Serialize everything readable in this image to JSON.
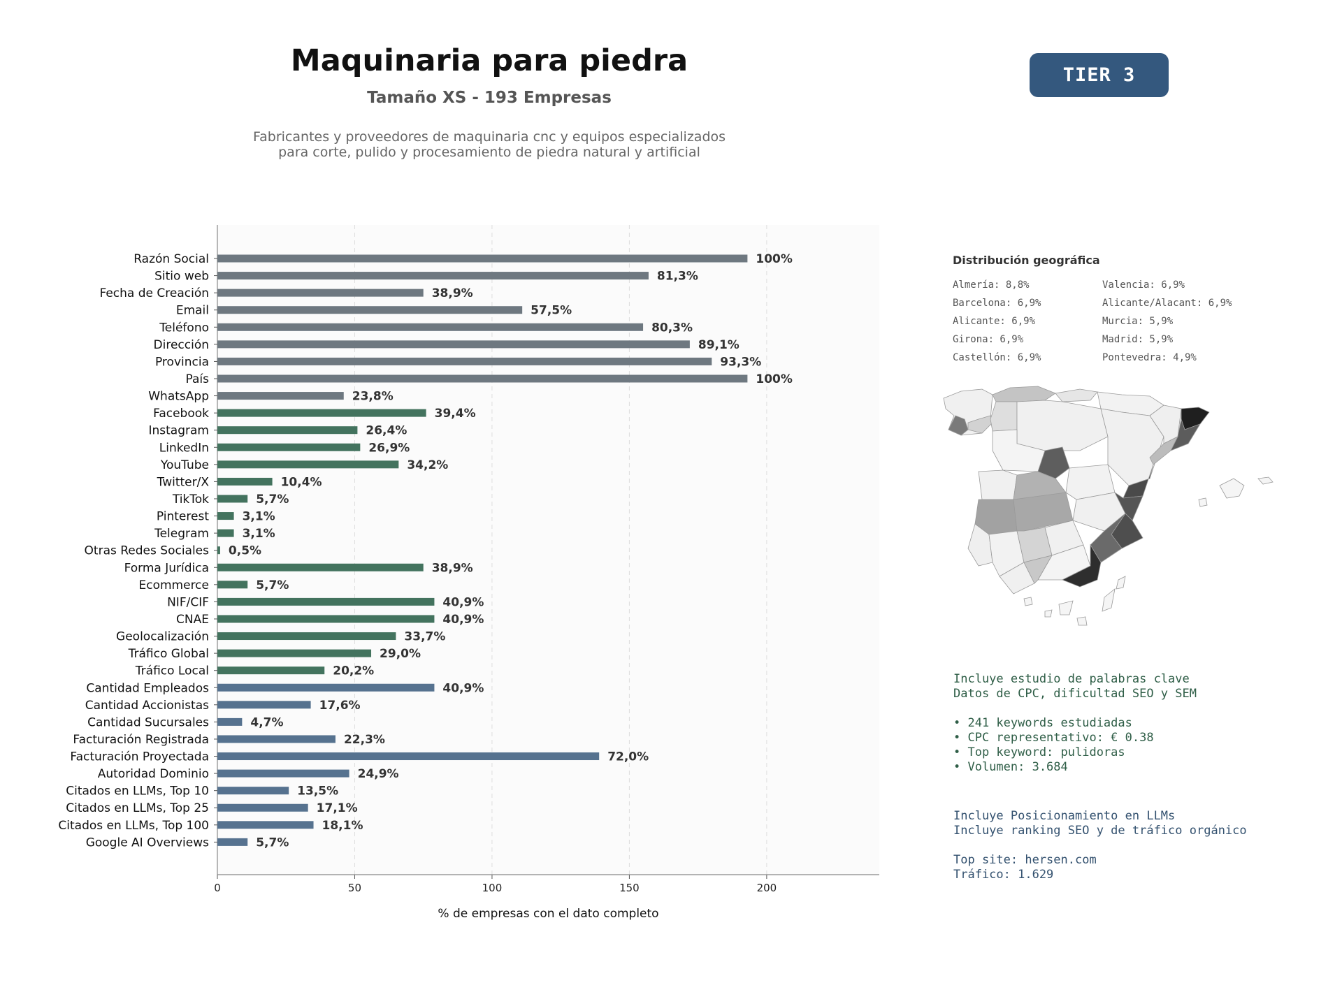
{
  "header": {
    "title": "Maquinaria para piedra",
    "subtitle": "Tamaño XS - 193 Empresas",
    "description_lines": [
      "Fabricantes y proveedores de maquinaria cnc y equipos especializados",
      "para corte, pulido y procesamiento de piedra natural y artificial"
    ],
    "tier_label": "TIER 3"
  },
  "chart_data": {
    "type": "bar",
    "orientation": "horizontal",
    "xlabel": "% de empresas con el dato completo",
    "xlim": [
      0,
      241
    ],
    "xticks": [
      0,
      50,
      100,
      150,
      200
    ],
    "grid": "vertical dashed",
    "categories": [
      "Razón Social",
      "Sitio web",
      "Fecha de Creación",
      "Email",
      "Teléfono",
      "Dirección",
      "Provincia",
      "País",
      "WhatsApp",
      "Facebook",
      "Instagram",
      "LinkedIn",
      "YouTube",
      "Twitter/X",
      "TikTok",
      "Pinterest",
      "Telegram",
      "Otras Redes Sociales",
      "Forma Jurídica",
      "Ecommerce",
      "NIF/CIF",
      "CNAE",
      "Geolocalización",
      "Tráfico Global",
      "Tráfico Local",
      "Cantidad Empleados",
      "Cantidad Accionistas",
      "Cantidad Sucursales",
      "Facturación Registrada",
      "Facturación Proyectada",
      "Autoridad Dominio",
      "Citados en LLMs, Top 10",
      "Citados en LLMs, Top 25",
      "Citados en LLMs, Top 100",
      "Google AI Overviews"
    ],
    "values": [
      193,
      157,
      75,
      111,
      155,
      172,
      180,
      193,
      46,
      76,
      51,
      52,
      66,
      20,
      11,
      6,
      6,
      1,
      75,
      11,
      79,
      79,
      65,
      56,
      39,
      79,
      34,
      9,
      43,
      139,
      48,
      26,
      33,
      35,
      11
    ],
    "labels": [
      "100%",
      "81,3%",
      "38,9%",
      "57,5%",
      "80,3%",
      "89,1%",
      "93,3%",
      "100%",
      "23,8%",
      "39,4%",
      "26,4%",
      "26,9%",
      "34,2%",
      "10,4%",
      "5,7%",
      "3,1%",
      "3,1%",
      "0,5%",
      "38,9%",
      "5,7%",
      "40,9%",
      "40,9%",
      "33,7%",
      "29,0%",
      "20,2%",
      "40,9%",
      "17,6%",
      "4,7%",
      "22,3%",
      "72,0%",
      "24,9%",
      "13,5%",
      "17,1%",
      "18,1%",
      "5,7%"
    ],
    "groups": [
      "gray",
      "green",
      "blue"
    ],
    "group_of_bar": [
      0,
      0,
      0,
      0,
      0,
      0,
      0,
      0,
      0,
      1,
      1,
      1,
      1,
      1,
      1,
      1,
      1,
      1,
      1,
      1,
      1,
      1,
      1,
      1,
      1,
      2,
      2,
      2,
      2,
      2,
      2,
      2,
      2,
      2,
      2
    ],
    "colors": {
      "gray": "#6e7880",
      "green": "#43735e",
      "blue": "#56728f",
      "grid": "#dddddd",
      "plot_bg": "#fbfbfb",
      "label": "#333333"
    }
  },
  "geo": {
    "title": "Distribución geográfica",
    "items": [
      "Almería: 8,8%",
      "Valencia: 6,9%",
      "Barcelona: 6,9%",
      "Alicante/Alacant: 6,9%",
      "Alicante: 6,9%",
      "Murcia: 5,9%",
      "Girona: 6,9%",
      "Madrid: 5,9%",
      "Castellón: 6,9%",
      "Pontevedra: 4,9%"
    ]
  },
  "keywords": {
    "lines": [
      "Incluye estudio de palabras clave",
      "Datos de CPC, dificultad SEO y SEM",
      "",
      "• 241 keywords estudiadas",
      "• CPC representativo: € 0.38",
      "• Top keyword: pulidoras",
      "• Volumen: 3.684"
    ]
  },
  "llm": {
    "lines": [
      "Incluye Posicionamiento en LLMs",
      "Incluye ranking SEO y de tráfico orgánico",
      "",
      "Top site: hersen.com",
      "Tráfico: 1.629"
    ]
  }
}
